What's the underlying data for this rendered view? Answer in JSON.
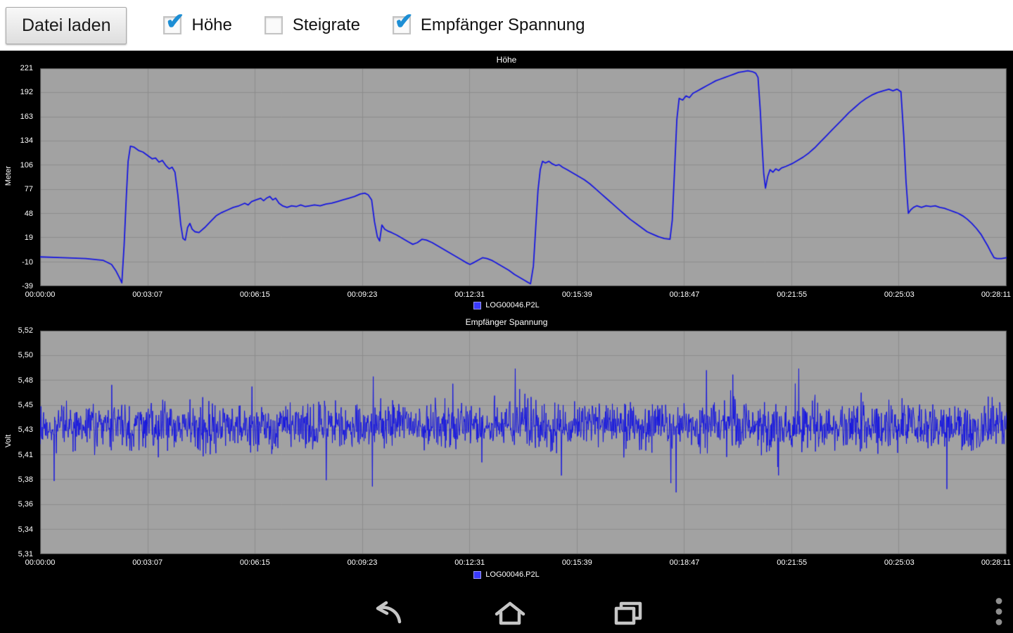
{
  "toolbar": {
    "load_button": "Datei laden",
    "checkboxes": [
      {
        "label": "Höhe",
        "checked": true
      },
      {
        "label": "Steigrate",
        "checked": false
      },
      {
        "label": "Empfänger Spannung",
        "checked": true
      }
    ]
  },
  "colors": {
    "toolbar_bg": "#ffffff",
    "app_bg": "#000000",
    "plot_bg": "#a2a2a2",
    "grid": "#8d8d8d",
    "plot_border": "#4a4a4a",
    "series_blue": "#1717e0",
    "chart_text": "#ffffff",
    "check_blue": "#1d8ed4",
    "nav_icon": "#c6c6c6"
  },
  "chart_data": [
    {
      "type": "line",
      "title": "Höhe",
      "ylabel": "Meter",
      "legend": "LOG00046.P2L",
      "grid": true,
      "legend_position": "bottom-center",
      "line_width": 1.8,
      "x_tick_labels": [
        "00:00:00",
        "00:03:07",
        "00:06:15",
        "00:09:23",
        "00:12:31",
        "00:15:39",
        "00:18:47",
        "00:21:55",
        "00:25:03",
        "00:28:11"
      ],
      "y_tick_labels": [
        "221",
        "192",
        "163",
        "134",
        "106",
        "77",
        "48",
        "19",
        "-10",
        "-39"
      ],
      "xlim": [
        0,
        1691
      ],
      "ylim": [
        -39,
        221
      ],
      "series": [
        {
          "name": "LOG00046.P2L",
          "points": [
            [
              0,
              -4
            ],
            [
              40,
              -5
            ],
            [
              80,
              -6
            ],
            [
              110,
              -8
            ],
            [
              125,
              -13
            ],
            [
              133,
              -21
            ],
            [
              139,
              -29
            ],
            [
              143,
              -35
            ],
            [
              147,
              10
            ],
            [
              151,
              70
            ],
            [
              154,
              110
            ],
            [
              158,
              128
            ],
            [
              164,
              127
            ],
            [
              172,
              123
            ],
            [
              180,
              121
            ],
            [
              188,
              117
            ],
            [
              196,
              113
            ],
            [
              202,
              114
            ],
            [
              208,
              109
            ],
            [
              214,
              111
            ],
            [
              220,
              105
            ],
            [
              226,
              101
            ],
            [
              231,
              103
            ],
            [
              236,
              97
            ],
            [
              241,
              70
            ],
            [
              246,
              35
            ],
            [
              250,
              18
            ],
            [
              254,
              16
            ],
            [
              258,
              31
            ],
            [
              262,
              36
            ],
            [
              266,
              29
            ],
            [
              271,
              26
            ],
            [
              278,
              25
            ],
            [
              288,
              31
            ],
            [
              298,
              38
            ],
            [
              308,
              45
            ],
            [
              318,
              49
            ],
            [
              328,
              52
            ],
            [
              338,
              55
            ],
            [
              348,
              57
            ],
            [
              358,
              60
            ],
            [
              364,
              58
            ],
            [
              370,
              62
            ],
            [
              378,
              64
            ],
            [
              386,
              66
            ],
            [
              391,
              63
            ],
            [
              396,
              66
            ],
            [
              402,
              68
            ],
            [
              407,
              64
            ],
            [
              412,
              66
            ],
            [
              418,
              60
            ],
            [
              424,
              57
            ],
            [
              432,
              55
            ],
            [
              440,
              57
            ],
            [
              448,
              56
            ],
            [
              456,
              58
            ],
            [
              464,
              56
            ],
            [
              472,
              57
            ],
            [
              480,
              58
            ],
            [
              490,
              57
            ],
            [
              500,
              59
            ],
            [
              510,
              60
            ],
            [
              520,
              62
            ],
            [
              530,
              64
            ],
            [
              540,
              66
            ],
            [
              550,
              68
            ],
            [
              560,
              71
            ],
            [
              568,
              72
            ],
            [
              574,
              70
            ],
            [
              580,
              64
            ],
            [
              585,
              38
            ],
            [
              590,
              20
            ],
            [
              594,
              15
            ],
            [
              598,
              34
            ],
            [
              603,
              29
            ],
            [
              608,
              27
            ],
            [
              615,
              25
            ],
            [
              624,
              22
            ],
            [
              634,
              18
            ],
            [
              644,
              14
            ],
            [
              652,
              11
            ],
            [
              660,
              13
            ],
            [
              668,
              17
            ],
            [
              676,
              16
            ],
            [
              686,
              13
            ],
            [
              696,
              9
            ],
            [
              706,
              5
            ],
            [
              716,
              1
            ],
            [
              726,
              -3
            ],
            [
              736,
              -7
            ],
            [
              746,
              -11
            ],
            [
              752,
              -13
            ],
            [
              758,
              -11
            ],
            [
              766,
              -8
            ],
            [
              774,
              -5
            ],
            [
              782,
              -6
            ],
            [
              790,
              -8
            ],
            [
              800,
              -12
            ],
            [
              810,
              -16
            ],
            [
              820,
              -20
            ],
            [
              830,
              -25
            ],
            [
              840,
              -29
            ],
            [
              850,
              -33
            ],
            [
              858,
              -36
            ],
            [
              863,
              -15
            ],
            [
              867,
              30
            ],
            [
              871,
              75
            ],
            [
              875,
              100
            ],
            [
              879,
              110
            ],
            [
              884,
              108
            ],
            [
              890,
              110
            ],
            [
              896,
              107
            ],
            [
              902,
              105
            ],
            [
              908,
              106
            ],
            [
              914,
              103
            ],
            [
              922,
              100
            ],
            [
              932,
              96
            ],
            [
              942,
              92
            ],
            [
              952,
              88
            ],
            [
              962,
              83
            ],
            [
              972,
              77
            ],
            [
              982,
              71
            ],
            [
              992,
              65
            ],
            [
              1002,
              59
            ],
            [
              1012,
              53
            ],
            [
              1022,
              47
            ],
            [
              1032,
              41
            ],
            [
              1042,
              36
            ],
            [
              1052,
              31
            ],
            [
              1062,
              26
            ],
            [
              1072,
              23
            ],
            [
              1082,
              20
            ],
            [
              1092,
              18
            ],
            [
              1102,
              17
            ],
            [
              1106,
              40
            ],
            [
              1110,
              100
            ],
            [
              1114,
              160
            ],
            [
              1118,
              185
            ],
            [
              1124,
              183
            ],
            [
              1130,
              188
            ],
            [
              1136,
              186
            ],
            [
              1142,
              191
            ],
            [
              1150,
              194
            ],
            [
              1158,
              197
            ],
            [
              1166,
              200
            ],
            [
              1174,
              203
            ],
            [
              1182,
              206
            ],
            [
              1190,
              208
            ],
            [
              1198,
              210
            ],
            [
              1206,
              212
            ],
            [
              1214,
              214
            ],
            [
              1222,
              216
            ],
            [
              1230,
              217
            ],
            [
              1238,
              218
            ],
            [
              1246,
              217
            ],
            [
              1252,
              215
            ],
            [
              1256,
              210
            ],
            [
              1260,
              170
            ],
            [
              1263,
              130
            ],
            [
              1266,
              95
            ],
            [
              1269,
              78
            ],
            [
              1273,
              92
            ],
            [
              1277,
              100
            ],
            [
              1282,
              97
            ],
            [
              1287,
              101
            ],
            [
              1292,
              99
            ],
            [
              1297,
              102
            ],
            [
              1305,
              104
            ],
            [
              1315,
              107
            ],
            [
              1325,
              111
            ],
            [
              1335,
              115
            ],
            [
              1345,
              120
            ],
            [
              1355,
              126
            ],
            [
              1365,
              133
            ],
            [
              1375,
              140
            ],
            [
              1385,
              147
            ],
            [
              1395,
              154
            ],
            [
              1405,
              161
            ],
            [
              1415,
              168
            ],
            [
              1425,
              174
            ],
            [
              1435,
              180
            ],
            [
              1445,
              185
            ],
            [
              1455,
              189
            ],
            [
              1465,
              192
            ],
            [
              1475,
              194
            ],
            [
              1485,
              196
            ],
            [
              1492,
              194
            ],
            [
              1499,
              196
            ],
            [
              1506,
              193
            ],
            [
              1511,
              140
            ],
            [
              1515,
              85
            ],
            [
              1519,
              48
            ],
            [
              1523,
              52
            ],
            [
              1528,
              55
            ],
            [
              1534,
              57
            ],
            [
              1542,
              55
            ],
            [
              1550,
              57
            ],
            [
              1558,
              56
            ],
            [
              1566,
              57
            ],
            [
              1574,
              55
            ],
            [
              1582,
              54
            ],
            [
              1590,
              52
            ],
            [
              1598,
              50
            ],
            [
              1606,
              48
            ],
            [
              1614,
              45
            ],
            [
              1622,
              41
            ],
            [
              1630,
              36
            ],
            [
              1638,
              30
            ],
            [
              1646,
              23
            ],
            [
              1652,
              16
            ],
            [
              1658,
              9
            ],
            [
              1664,
              1
            ],
            [
              1669,
              -5
            ],
            [
              1674,
              -6
            ],
            [
              1682,
              -6
            ],
            [
              1691,
              -5
            ]
          ]
        }
      ]
    },
    {
      "type": "line",
      "title": "Empfänger Spannung",
      "ylabel": "Volt",
      "legend": "LOG00046.P2L",
      "grid": true,
      "legend_position": "bottom-center",
      "line_width": 1,
      "x_tick_labels": [
        "00:00:00",
        "00:03:07",
        "00:06:15",
        "00:09:23",
        "00:12:31",
        "00:15:39",
        "00:18:47",
        "00:21:55",
        "00:25:03",
        "00:28:11"
      ],
      "y_tick_labels": [
        "5,52",
        "5,50",
        "5,48",
        "5,45",
        "5,43",
        "5,41",
        "5,38",
        "5,36",
        "5,34",
        "5,31"
      ],
      "xlim": [
        0,
        1691
      ],
      "ylim": [
        5.31,
        5.52
      ],
      "series": [
        {
          "name": "LOG00046.P2L",
          "generator": {
            "kind": "seeded-noise",
            "n": 2200,
            "seed": 20460,
            "mean": 5.43,
            "base_amplitude": 0.032,
            "spike_probability": 0.02,
            "spike_amplitude": 0.055,
            "min": 5.31,
            "max": 5.52
          }
        }
      ]
    }
  ],
  "navbar": {
    "back_icon": "back",
    "home_icon": "home",
    "recents_icon": "recent-apps",
    "menu_icon": "overflow-menu"
  }
}
